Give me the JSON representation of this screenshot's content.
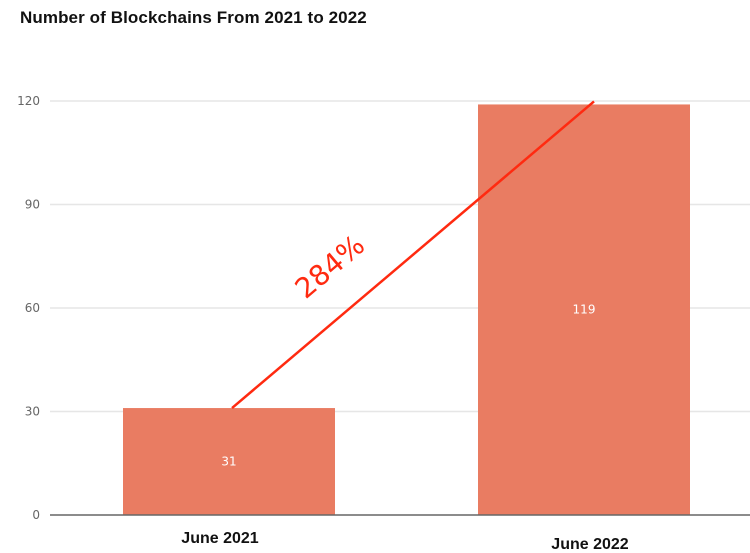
{
  "chart_data": {
    "type": "bar",
    "title": "Number of Blockchains From 2021 to 2022",
    "categories": [
      "June 2021",
      "June 2022"
    ],
    "values": [
      31,
      119
    ],
    "ylim": [
      0,
      120
    ],
    "yticks": [
      0,
      30,
      60,
      90,
      120
    ],
    "grid": true,
    "bar_color": "#e97c62",
    "annotation": {
      "text": "284%",
      "color": "#ff2a10"
    }
  }
}
